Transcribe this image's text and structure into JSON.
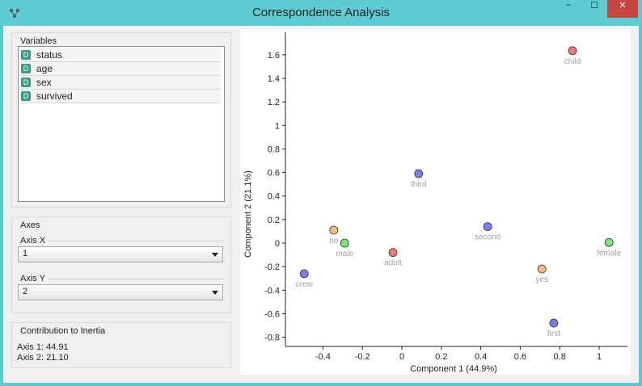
{
  "window": {
    "title": "Correspondence Analysis",
    "min_label": "–",
    "max_label": "☐",
    "close_label": "✕"
  },
  "variables": {
    "title": "Variables",
    "badge": "D",
    "items": [
      {
        "label": "status"
      },
      {
        "label": "age"
      },
      {
        "label": "sex"
      },
      {
        "label": "survived"
      }
    ]
  },
  "axes": {
    "title": "Axes",
    "axis_x_label": "Axis X",
    "axis_x_value": "1",
    "axis_y_label": "Axis Y",
    "axis_y_value": "2"
  },
  "inertia": {
    "title": "Contribution to Inertia",
    "axis1": "Axis 1: 44.91",
    "axis2": "Axis 2: 21.10"
  },
  "colors": {
    "red": "#ee6b6b",
    "blue": "#6e6ef0",
    "green": "#66e666",
    "orange": "#f5b46a"
  },
  "chart_data": {
    "type": "scatter",
    "xlabel": "Component 1 (44.9%)",
    "ylabel": "Component 2 (21.1%)",
    "xlim": [
      -0.6,
      1.08
    ],
    "ylim": [
      -0.84,
      1.74
    ],
    "xticks": [
      "-0.4",
      "-0.2",
      "0",
      "0.2",
      "0.4",
      "0.6",
      "0.8",
      "1"
    ],
    "xtick_values": [
      -0.4,
      -0.2,
      0,
      0.2,
      0.4,
      0.6,
      0.8,
      1
    ],
    "yticks": [
      "1.6",
      "1.4",
      "1.2",
      "1",
      "0.8",
      "0.6",
      "0.4",
      "0.2",
      "0",
      "-0.2",
      "-0.4",
      "-0.6",
      "-0.8"
    ],
    "ytick_values": [
      1.6,
      1.4,
      1.2,
      1,
      0.8,
      0.6,
      0.4,
      0.2,
      0,
      -0.2,
      -0.4,
      -0.6,
      -0.8
    ],
    "points": [
      {
        "label": "child",
        "x": 0.865,
        "y": 1.635,
        "color": "red"
      },
      {
        "label": "adult",
        "x": -0.045,
        "y": -0.08,
        "color": "red"
      },
      {
        "label": "third",
        "x": 0.085,
        "y": 0.59,
        "color": "blue"
      },
      {
        "label": "second",
        "x": 0.435,
        "y": 0.14,
        "color": "blue"
      },
      {
        "label": "crew",
        "x": -0.495,
        "y": -0.26,
        "color": "blue"
      },
      {
        "label": "first",
        "x": 0.77,
        "y": -0.68,
        "color": "blue"
      },
      {
        "label": "male",
        "x": -0.29,
        "y": 0.0,
        "color": "green"
      },
      {
        "label": "female",
        "x": 1.05,
        "y": 0.005,
        "color": "green"
      },
      {
        "label": "no",
        "x": -0.345,
        "y": 0.11,
        "color": "orange"
      },
      {
        "label": "yes",
        "x": 0.71,
        "y": -0.22,
        "color": "orange"
      }
    ]
  }
}
